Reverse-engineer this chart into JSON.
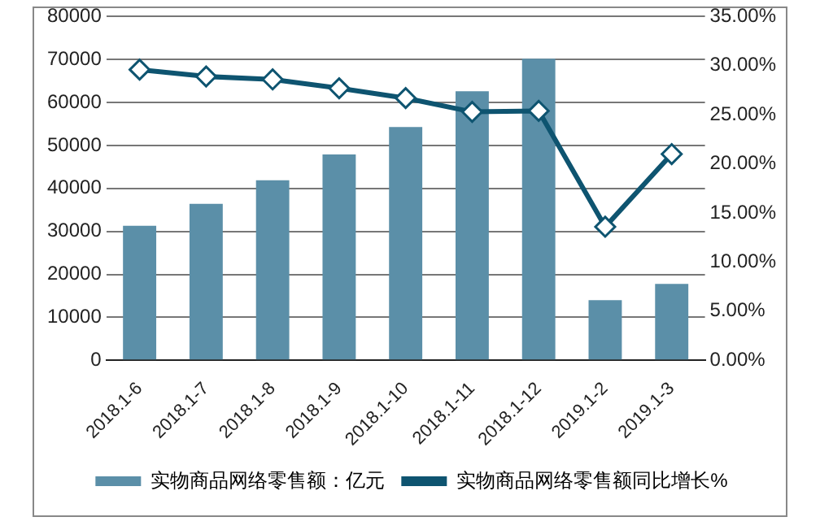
{
  "chart_data": {
    "type": "bar",
    "categories": [
      "2018.1-6",
      "2018.1-7",
      "2018.1-8",
      "2018.1-9",
      "2018.1-10",
      "2018.1-11",
      "2018.1-12",
      "2019.1-2",
      "2019.1-3"
    ],
    "series": [
      {
        "name": "实物商品网络零售额：亿元",
        "color": "#5b8fa8",
        "values": [
          31300,
          36400,
          41900,
          47900,
          54300,
          62600,
          70200,
          14000,
          17800
        ]
      },
      {
        "name": "实物商品网络零售额同比增长%",
        "type": "line",
        "axis": "y2",
        "color": "#0e5470",
        "marker": "diamond",
        "values": [
          29.6,
          28.9,
          28.6,
          27.7,
          26.7,
          25.3,
          25.4,
          13.6,
          21.0
        ]
      }
    ],
    "ylim": [
      0,
      80000
    ],
    "yticks": [
      0,
      10000,
      20000,
      30000,
      40000,
      50000,
      60000,
      70000,
      80000
    ],
    "y2lim": [
      0,
      35
    ],
    "y2ticks": [
      {
        "value": 0,
        "label": "0.00%"
      },
      {
        "value": 5,
        "label": "5.00%"
      },
      {
        "value": 10,
        "label": "10.00%"
      },
      {
        "value": 15,
        "label": "15.00%"
      },
      {
        "value": 20,
        "label": "20.00%"
      },
      {
        "value": 25,
        "label": "25.00%"
      },
      {
        "value": 30,
        "label": "30.00%"
      },
      {
        "value": 35,
        "label": "35.00%"
      }
    ],
    "grid": "y",
    "legend": "bottom"
  }
}
